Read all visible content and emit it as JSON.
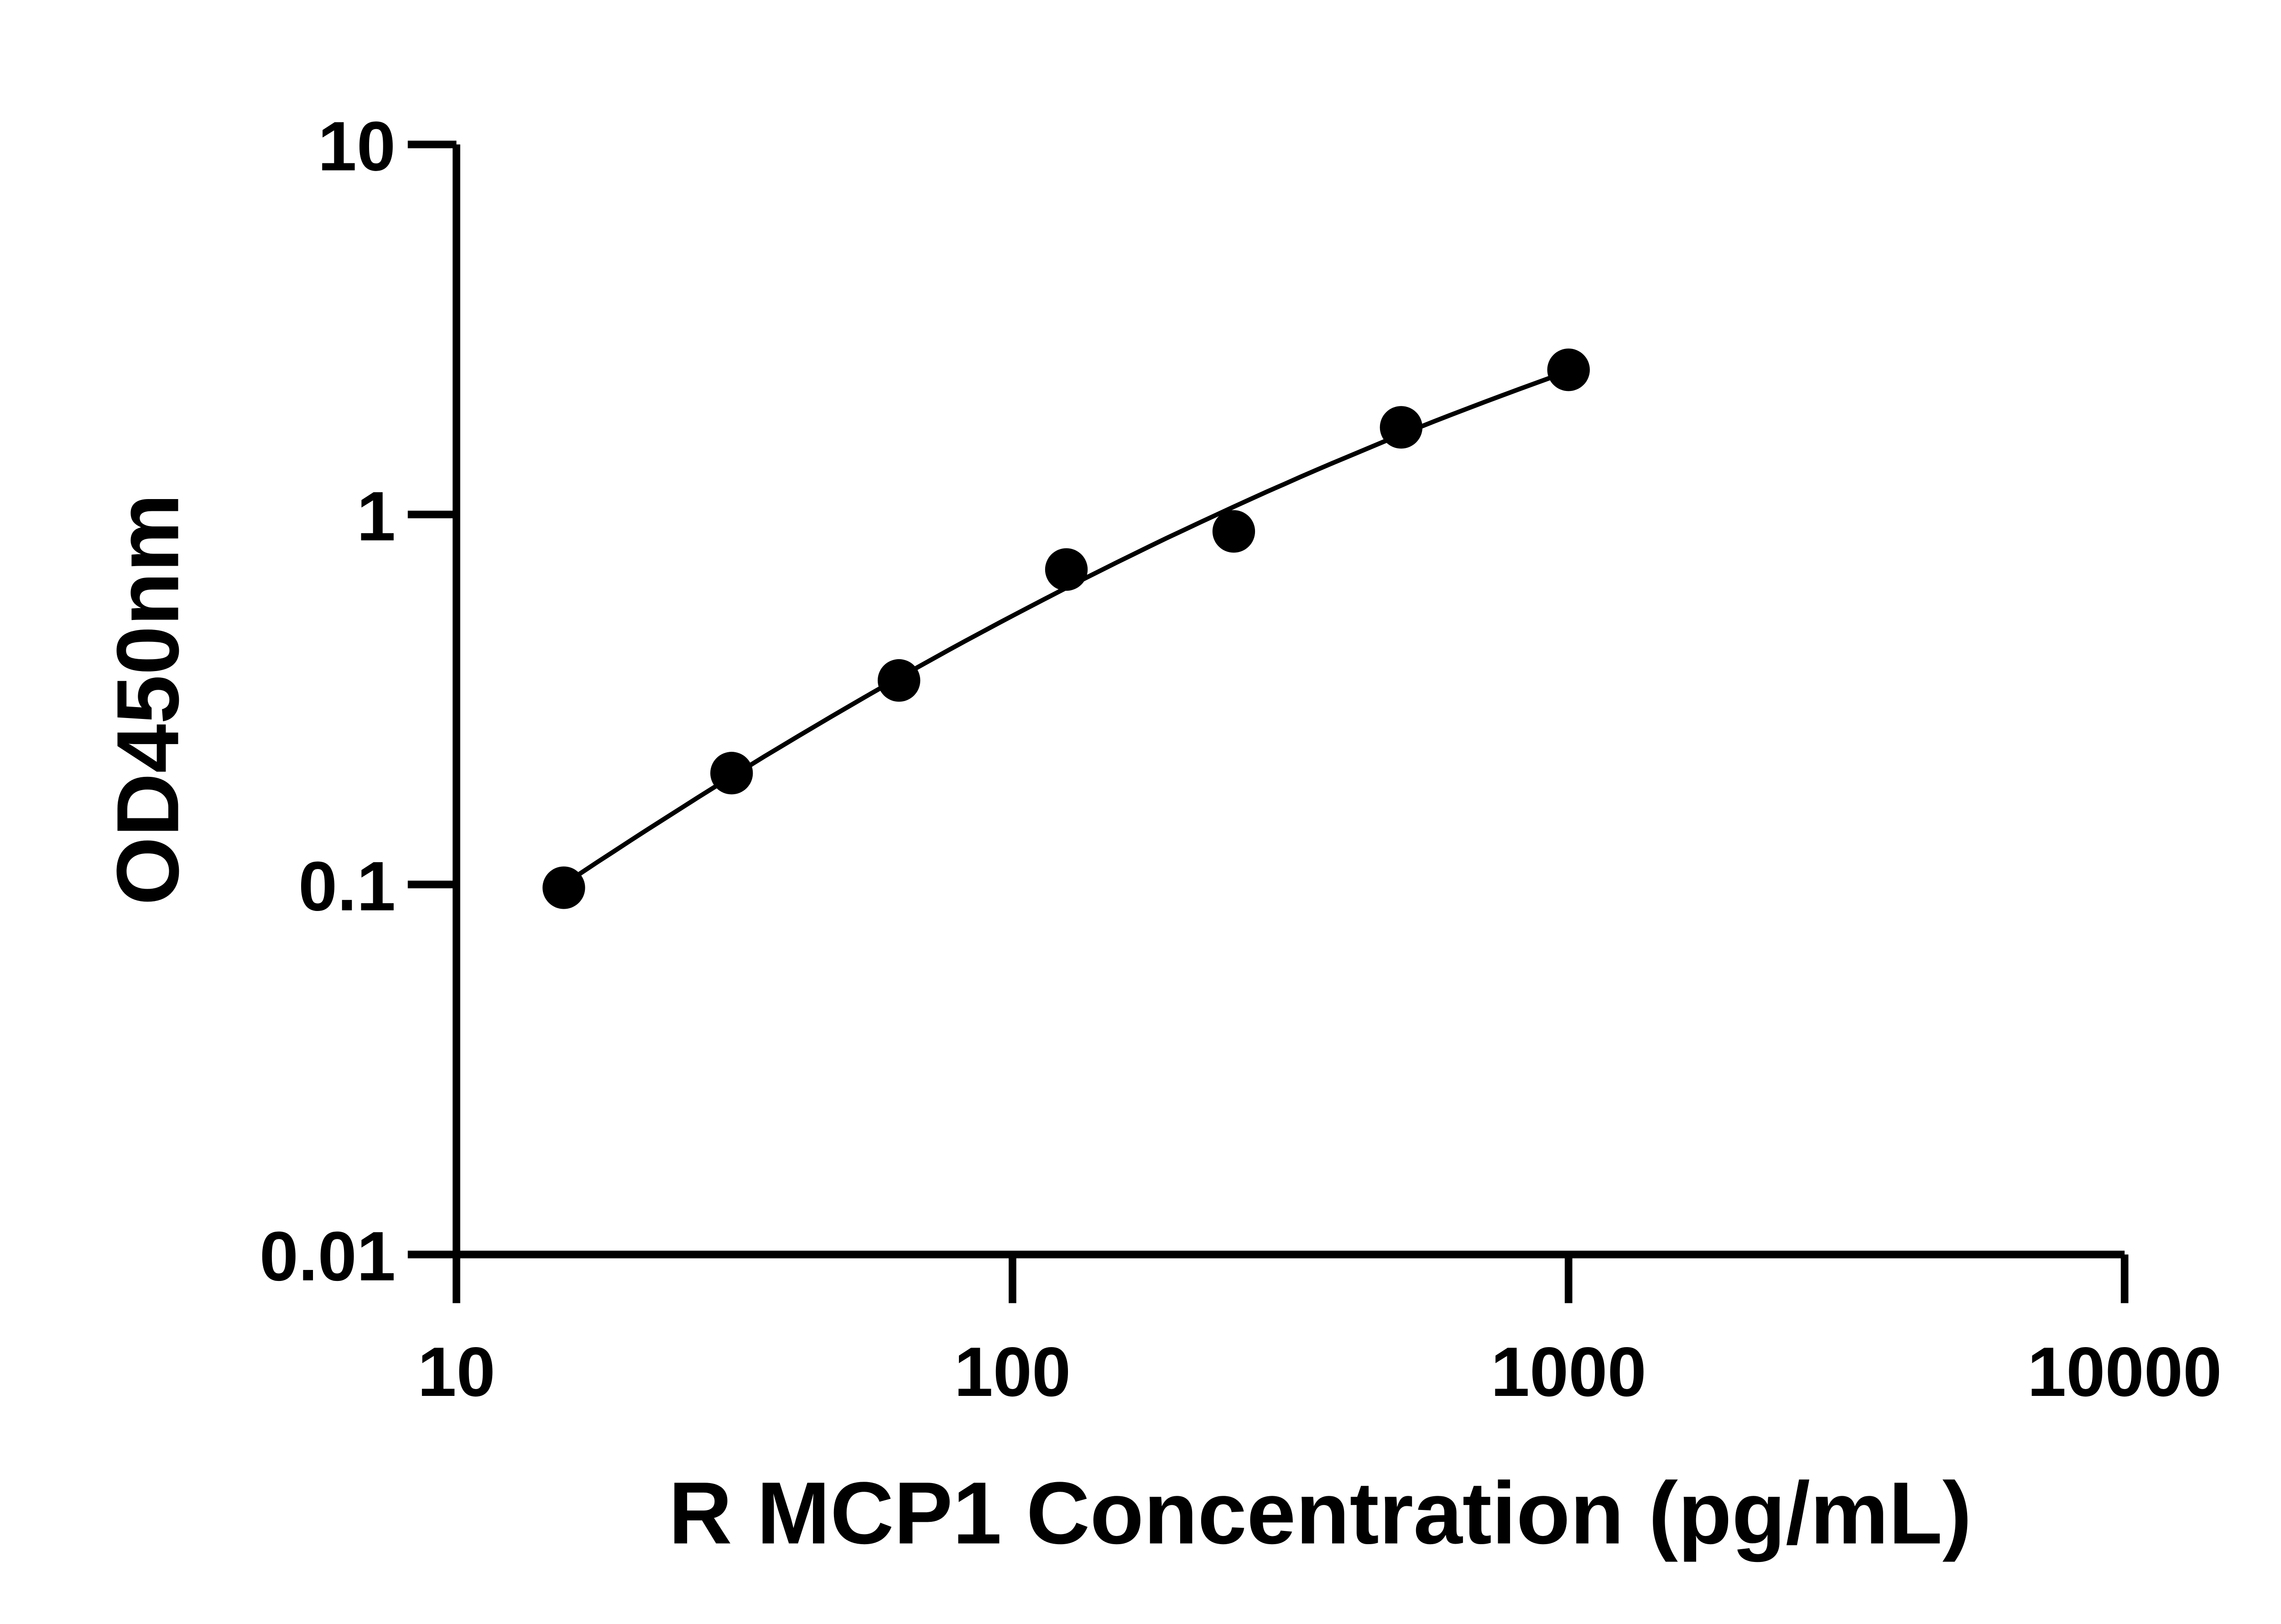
{
  "chart_data": {
    "type": "scatter",
    "xlabel": "R MCP1 Concentration (pg/mL)",
    "ylabel": "OD450nm",
    "xscale": "log",
    "yscale": "log",
    "xlim": [
      10,
      10000
    ],
    "ylim": [
      0.01,
      10
    ],
    "xticks": [
      "10",
      "100",
      "1000",
      "10000"
    ],
    "yticks": [
      "0.01",
      "0.1",
      "1",
      "10"
    ],
    "grid": false,
    "points": [
      {
        "x": 15.6,
        "y": 0.098
      },
      {
        "x": 31.25,
        "y": 0.2
      },
      {
        "x": 62.5,
        "y": 0.356
      },
      {
        "x": 125,
        "y": 0.71
      },
      {
        "x": 250,
        "y": 0.9
      },
      {
        "x": 500,
        "y": 1.72
      },
      {
        "x": 1000,
        "y": 2.46
      }
    ],
    "fit_curve": true,
    "colors": {
      "marker": "#000000",
      "line": "#000000",
      "axis": "#000000"
    }
  }
}
